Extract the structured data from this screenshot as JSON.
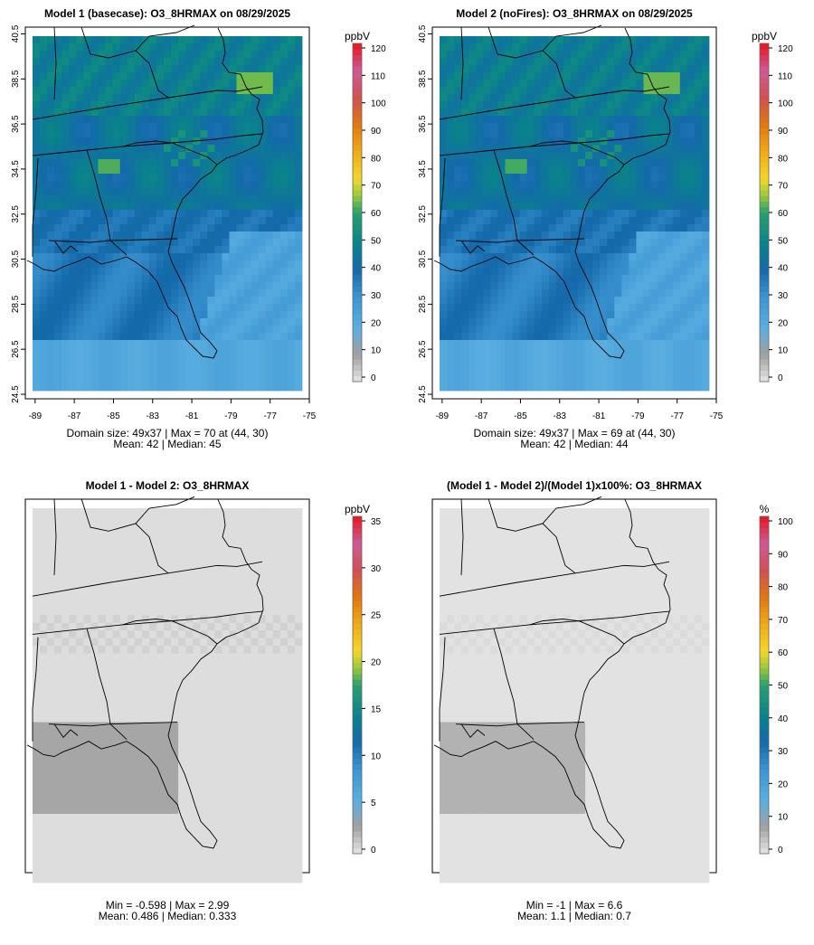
{
  "chart_data": [
    {
      "type": "heatmap",
      "title": "Model 1 (basecase): O3_8HRMAX on 08/29/2025",
      "variable": "O3_8HRMAX",
      "date": "08/29/2025",
      "x_ticks": [
        "-89",
        "-87",
        "-85",
        "-83",
        "-81",
        "-79",
        "-77",
        "-75"
      ],
      "y_ticks": [
        "24.5",
        "26.5",
        "28.5",
        "30.5",
        "32.5",
        "34.5",
        "36.5",
        "38.5",
        "40.5"
      ],
      "xlim": [
        -89.5,
        -75
      ],
      "ylim": [
        24.3,
        40.8
      ],
      "colorbar": {
        "unit": "ppbV",
        "ticks": [
          "0",
          "10",
          "20",
          "30",
          "40",
          "50",
          "60",
          "70",
          "80",
          "90",
          "100",
          "110",
          "120"
        ],
        "range": [
          0,
          120
        ]
      },
      "domain_size": "49x37",
      "max_value": 70,
      "max_location": "(44, 30)",
      "stats_line1": "Domain size: 49x37 | Max = 70 at (44, 30)",
      "stats_line2": "Mean: 42 |  Median: 45",
      "mean": 42,
      "median": 45,
      "field": "base"
    },
    {
      "type": "heatmap",
      "title": "Model 2 (noFires): O3_8HRMAX on 08/29/2025",
      "variable": "O3_8HRMAX",
      "date": "08/29/2025",
      "x_ticks": [
        "-89",
        "-87",
        "-85",
        "-83",
        "-81",
        "-79",
        "-77",
        "-75"
      ],
      "y_ticks": [
        "24.5",
        "26.5",
        "28.5",
        "30.5",
        "32.5",
        "34.5",
        "36.5",
        "38.5",
        "40.5"
      ],
      "xlim": [
        -89.5,
        -75
      ],
      "ylim": [
        24.3,
        40.8
      ],
      "colorbar": {
        "unit": "ppbV",
        "ticks": [
          "0",
          "10",
          "20",
          "30",
          "40",
          "50",
          "60",
          "70",
          "80",
          "90",
          "100",
          "110",
          "120"
        ],
        "range": [
          0,
          120
        ]
      },
      "domain_size": "49x37",
      "max_value": 69,
      "max_location": "(44, 30)",
      "stats_line1": "Domain size: 49x37 | Max = 69 at (44, 30)",
      "stats_line2": "Mean: 42 |  Median: 44",
      "mean": 42,
      "median": 44,
      "field": "nofire"
    },
    {
      "type": "heatmap",
      "title": "Model 1 - Model 2: O3_8HRMAX",
      "variable": "O3_8HRMAX",
      "xlim": [
        -89.5,
        -75
      ],
      "ylim": [
        24.3,
        40.8
      ],
      "colorbar": {
        "unit": "ppbV",
        "ticks": [
          "0",
          "5",
          "10",
          "15",
          "20",
          "25",
          "30",
          "35"
        ],
        "range": [
          0,
          35
        ]
      },
      "min_value": -0.598,
      "max_value": 2.99,
      "stats_line1": "Min = -0.598 | Max = 2.99",
      "stats_line2": "Mean: 0.486 |  Median: 0.333",
      "mean": 0.486,
      "median": 0.333,
      "field": "diff"
    },
    {
      "type": "heatmap",
      "title": "(Model 1 - Model 2)/(Model 1)x100%: O3_8HRMAX",
      "variable": "O3_8HRMAX",
      "xlim": [
        -89.5,
        -75
      ],
      "ylim": [
        24.3,
        40.8
      ],
      "colorbar": {
        "unit": "%",
        "ticks": [
          "0",
          "10",
          "20",
          "30",
          "40",
          "50",
          "60",
          "70",
          "80",
          "90",
          "100"
        ],
        "range": [
          0,
          100
        ]
      },
      "min_value": -1,
      "max_value": 6.6,
      "stats_line1": "Min = -1 | Max = 6.6",
      "stats_line2": "Mean: 1.1 |  Median: 0.7",
      "mean": 1.1,
      "median": 0.7,
      "field": "pct"
    }
  ]
}
